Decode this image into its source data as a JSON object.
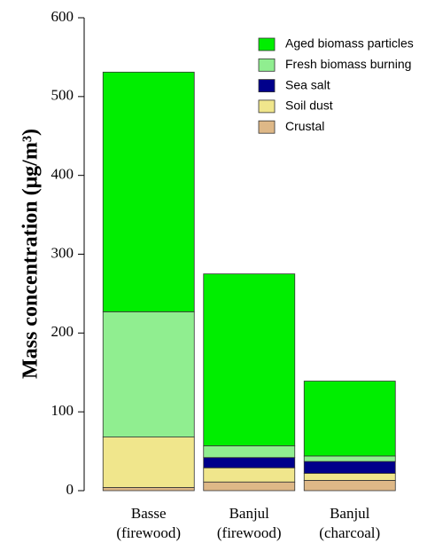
{
  "chart_data": {
    "type": "stacked_bar",
    "y_label": "Mass concentration (μg/m³)",
    "categories": [
      "Basse\n(firewood)",
      "Banjul\n(firewood)",
      "Banjul\n(charcoal)"
    ],
    "series": [
      {
        "name": "Crustal",
        "color": "#deb887",
        "values": [
          4,
          11,
          13
        ]
      },
      {
        "name": "Soil dust",
        "color": "#f0e68c",
        "values": [
          64,
          18,
          9
        ]
      },
      {
        "name": "Sea salt",
        "color": "#00008b",
        "values": [
          0,
          13,
          15
        ]
      },
      {
        "name": "Fresh biomass burning",
        "color": "#90ee90",
        "values": [
          159,
          15,
          7
        ]
      },
      {
        "name": "Aged biomass particles",
        "color": "#00ee00",
        "values": [
          304,
          218,
          95
        ]
      }
    ],
    "ylim": [
      0,
      600
    ],
    "yticks": [
      0,
      100,
      200,
      300,
      400,
      500,
      600
    ],
    "legend": "top-right"
  }
}
